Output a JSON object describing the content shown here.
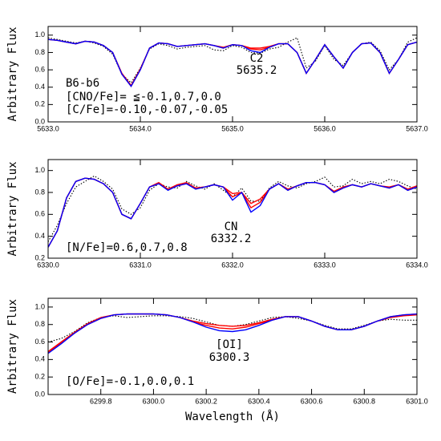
{
  "chart_data": [
    {
      "type": "line",
      "ylabel": "Arbitrary Flux",
      "annotations": [
        "C2",
        "5635.2",
        "B6-b6",
        "[CNO/Fe]= ≦-0.1,0.7,0.0",
        "[C/Fe]=-0.10,-0.07,-0.05"
      ],
      "xlim": [
        5633.0,
        5637.0
      ],
      "ylim": [
        0,
        1.1
      ],
      "xticks": [
        {
          "value": 5633.0,
          "label": "5633.0"
        },
        {
          "value": 5634.0,
          "label": "5634.0"
        },
        {
          "value": 5635.0,
          "label": "5635.0"
        },
        {
          "value": 5636.0,
          "label": "5636.0"
        },
        {
          "value": 5637.0,
          "label": "5637.0"
        }
      ],
      "yticks": [
        {
          "value": 0,
          "label": "0.0"
        },
        0.2,
        0.4,
        0.6,
        0.8,
        {
          "value": 1,
          "label": "1.0"
        }
      ],
      "x": [
        5633.0,
        5633.1,
        5633.2,
        5633.3,
        5633.4,
        5633.5,
        5633.6,
        5633.7,
        5633.8,
        5633.9,
        5634.0,
        5634.1,
        5634.2,
        5634.3,
        5634.4,
        5634.5,
        5634.6,
        5634.7,
        5634.8,
        5634.9,
        5635.0,
        5635.1,
        5635.2,
        5635.3,
        5635.4,
        5635.5,
        5635.6,
        5635.7,
        5635.8,
        5635.9,
        5636.0,
        5636.1,
        5636.2,
        5636.3,
        5636.4,
        5636.5,
        5636.6,
        5636.7,
        5636.8,
        5636.9,
        5637.0
      ],
      "series": [
        {
          "color": "#000000",
          "style": "dotted",
          "values": [
            0.97,
            0.95,
            0.93,
            0.91,
            0.93,
            0.91,
            0.87,
            0.78,
            0.55,
            0.45,
            0.62,
            0.84,
            0.9,
            0.88,
            0.84,
            0.86,
            0.87,
            0.88,
            0.83,
            0.82,
            0.88,
            0.86,
            0.8,
            0.79,
            0.84,
            0.86,
            0.92,
            0.97,
            0.62,
            0.7,
            0.88,
            0.72,
            0.65,
            0.8,
            0.9,
            0.92,
            0.82,
            0.6,
            0.72,
            0.92,
            0.97
          ]
        },
        {
          "color": "#ff0000",
          "style": "solid",
          "values": [
            0.95,
            0.94,
            0.92,
            0.9,
            0.93,
            0.92,
            0.88,
            0.8,
            0.56,
            0.42,
            0.61,
            0.85,
            0.91,
            0.9,
            0.87,
            0.88,
            0.89,
            0.9,
            0.88,
            0.86,
            0.89,
            0.88,
            0.85,
            0.85,
            0.87,
            0.9,
            0.9,
            0.8,
            0.56,
            0.72,
            0.89,
            0.75,
            0.62,
            0.8,
            0.9,
            0.91,
            0.8,
            0.56,
            0.72,
            0.89,
            0.92
          ]
        },
        {
          "color": "#ff0000",
          "style": "solid",
          "values": [
            0.95,
            0.94,
            0.92,
            0.9,
            0.93,
            0.92,
            0.88,
            0.8,
            0.55,
            0.41,
            0.6,
            0.85,
            0.91,
            0.9,
            0.87,
            0.88,
            0.89,
            0.9,
            0.88,
            0.85,
            0.89,
            0.88,
            0.84,
            0.83,
            0.86,
            0.9,
            0.9,
            0.8,
            0.56,
            0.72,
            0.89,
            0.75,
            0.62,
            0.8,
            0.9,
            0.91,
            0.8,
            0.56,
            0.72,
            0.89,
            0.92
          ]
        },
        {
          "color": "#0000ff",
          "style": "solid",
          "values": [
            0.95,
            0.94,
            0.92,
            0.9,
            0.93,
            0.92,
            0.88,
            0.8,
            0.55,
            0.41,
            0.6,
            0.85,
            0.91,
            0.9,
            0.87,
            0.88,
            0.89,
            0.9,
            0.88,
            0.85,
            0.89,
            0.88,
            0.82,
            0.8,
            0.86,
            0.9,
            0.9,
            0.8,
            0.56,
            0.72,
            0.89,
            0.75,
            0.62,
            0.8,
            0.9,
            0.91,
            0.8,
            0.56,
            0.72,
            0.89,
            0.92
          ]
        }
      ]
    },
    {
      "type": "line",
      "ylabel": "Arbitrary Flux",
      "annotations": [
        "CN",
        "6332.2",
        "[N/Fe]=0.6,0.7,0.8"
      ],
      "xlim": [
        6330.0,
        6334.0
      ],
      "ylim": [
        0.2,
        1.1
      ],
      "xticks": [
        {
          "value": 6330.0,
          "label": "6330.0"
        },
        {
          "value": 6331.0,
          "label": "6331.0"
        },
        {
          "value": 6332.0,
          "label": "6332.0"
        },
        {
          "value": 6333.0,
          "label": "6333.0"
        },
        {
          "value": 6334.0,
          "label": "6334.0"
        }
      ],
      "yticks": [
        0.2,
        0.4,
        0.6,
        0.8,
        {
          "value": 1,
          "label": "1.0"
        }
      ],
      "x": [
        6330.0,
        6330.1,
        6330.2,
        6330.3,
        6330.4,
        6330.5,
        6330.6,
        6330.7,
        6330.8,
        6330.9,
        6331.0,
        6331.1,
        6331.2,
        6331.3,
        6331.4,
        6331.5,
        6331.6,
        6331.7,
        6331.8,
        6331.9,
        6332.0,
        6332.1,
        6332.2,
        6332.3,
        6332.4,
        6332.5,
        6332.6,
        6332.7,
        6332.8,
        6332.9,
        6333.0,
        6333.1,
        6333.2,
        6333.3,
        6333.4,
        6333.5,
        6333.6,
        6333.7,
        6333.8,
        6333.9,
        6334.0
      ],
      "series": [
        {
          "color": "#000000",
          "style": "dotted",
          "values": [
            0.35,
            0.5,
            0.7,
            0.85,
            0.9,
            0.95,
            0.9,
            0.83,
            0.65,
            0.6,
            0.66,
            0.82,
            0.88,
            0.85,
            0.84,
            0.9,
            0.86,
            0.83,
            0.88,
            0.82,
            0.76,
            0.84,
            0.72,
            0.72,
            0.84,
            0.9,
            0.86,
            0.84,
            0.88,
            0.9,
            0.94,
            0.85,
            0.86,
            0.92,
            0.88,
            0.9,
            0.88,
            0.92,
            0.9,
            0.86,
            0.83
          ]
        },
        {
          "color": "#ff0000",
          "style": "solid",
          "values": [
            0.3,
            0.45,
            0.75,
            0.9,
            0.93,
            0.92,
            0.88,
            0.8,
            0.6,
            0.56,
            0.7,
            0.85,
            0.89,
            0.83,
            0.87,
            0.89,
            0.84,
            0.85,
            0.87,
            0.85,
            0.79,
            0.8,
            0.7,
            0.74,
            0.83,
            0.88,
            0.83,
            0.86,
            0.89,
            0.89,
            0.87,
            0.81,
            0.85,
            0.87,
            0.85,
            0.88,
            0.86,
            0.85,
            0.87,
            0.83,
            0.86
          ]
        },
        {
          "color": "#ff0000",
          "style": "solid",
          "values": [
            0.3,
            0.45,
            0.75,
            0.9,
            0.93,
            0.92,
            0.88,
            0.8,
            0.6,
            0.56,
            0.7,
            0.85,
            0.88,
            0.83,
            0.86,
            0.88,
            0.84,
            0.85,
            0.87,
            0.85,
            0.76,
            0.8,
            0.66,
            0.71,
            0.83,
            0.88,
            0.82,
            0.86,
            0.89,
            0.89,
            0.87,
            0.8,
            0.84,
            0.87,
            0.85,
            0.88,
            0.86,
            0.84,
            0.87,
            0.82,
            0.85
          ]
        },
        {
          "color": "#0000ff",
          "style": "solid",
          "values": [
            0.3,
            0.45,
            0.75,
            0.9,
            0.93,
            0.92,
            0.88,
            0.8,
            0.6,
            0.56,
            0.7,
            0.85,
            0.88,
            0.82,
            0.86,
            0.88,
            0.83,
            0.85,
            0.87,
            0.85,
            0.73,
            0.8,
            0.62,
            0.68,
            0.83,
            0.88,
            0.82,
            0.86,
            0.89,
            0.89,
            0.87,
            0.8,
            0.84,
            0.87,
            0.85,
            0.88,
            0.86,
            0.84,
            0.87,
            0.82,
            0.85
          ]
        }
      ]
    },
    {
      "type": "line",
      "ylabel": "Arbitrary Flux",
      "xlabel": "Wavelength (Å)",
      "annotations": [
        "[OI]",
        "6300.3",
        "[O/Fe]=-0.1,0.0,0.1"
      ],
      "xlim": [
        6299.6,
        6301.0
      ],
      "ylim": [
        0,
        1.1
      ],
      "xticks": [
        6299.8,
        {
          "value": 6300.0,
          "label": "6300.0"
        },
        6300.2,
        6300.4,
        6300.6,
        6300.8,
        {
          "value": 6301.0,
          "label": "6301.0"
        }
      ],
      "yticks": [
        {
          "value": 0,
          "label": "0.0"
        },
        0.2,
        0.4,
        0.6,
        0.8,
        {
          "value": 1,
          "label": "1.0"
        }
      ],
      "x": [
        6299.6,
        6299.65,
        6299.7,
        6299.75,
        6299.8,
        6299.85,
        6299.9,
        6299.95,
        6300.0,
        6300.05,
        6300.1,
        6300.15,
        6300.2,
        6300.25,
        6300.3,
        6300.35,
        6300.4,
        6300.45,
        6300.5,
        6300.55,
        6300.6,
        6300.65,
        6300.7,
        6300.75,
        6300.8,
        6300.85,
        6300.9,
        6300.95,
        6301.0
      ],
      "series": [
        {
          "color": "#000000",
          "style": "dotted",
          "values": [
            0.6,
            0.64,
            0.72,
            0.82,
            0.88,
            0.9,
            0.88,
            0.89,
            0.9,
            0.9,
            0.89,
            0.87,
            0.83,
            0.79,
            0.78,
            0.8,
            0.84,
            0.88,
            0.89,
            0.87,
            0.84,
            0.79,
            0.75,
            0.75,
            0.79,
            0.84,
            0.86,
            0.85,
            0.85
          ]
        },
        {
          "color": "#ff0000",
          "style": "solid",
          "values": [
            0.49,
            0.6,
            0.71,
            0.81,
            0.88,
            0.91,
            0.92,
            0.92,
            0.92,
            0.91,
            0.88,
            0.84,
            0.81,
            0.79,
            0.78,
            0.79,
            0.82,
            0.86,
            0.89,
            0.89,
            0.84,
            0.78,
            0.74,
            0.74,
            0.78,
            0.84,
            0.88,
            0.9,
            0.91
          ]
        },
        {
          "color": "#ff0000",
          "style": "solid",
          "values": [
            0.48,
            0.59,
            0.7,
            0.8,
            0.87,
            0.91,
            0.92,
            0.92,
            0.92,
            0.91,
            0.88,
            0.83,
            0.79,
            0.76,
            0.75,
            0.77,
            0.81,
            0.85,
            0.89,
            0.89,
            0.84,
            0.78,
            0.74,
            0.74,
            0.78,
            0.84,
            0.89,
            0.91,
            0.92
          ]
        },
        {
          "color": "#0000ff",
          "style": "solid",
          "values": [
            0.47,
            0.58,
            0.7,
            0.8,
            0.87,
            0.91,
            0.92,
            0.92,
            0.92,
            0.91,
            0.88,
            0.83,
            0.77,
            0.73,
            0.72,
            0.74,
            0.79,
            0.85,
            0.89,
            0.89,
            0.84,
            0.78,
            0.74,
            0.74,
            0.78,
            0.84,
            0.89,
            0.91,
            0.92
          ]
        }
      ]
    }
  ]
}
